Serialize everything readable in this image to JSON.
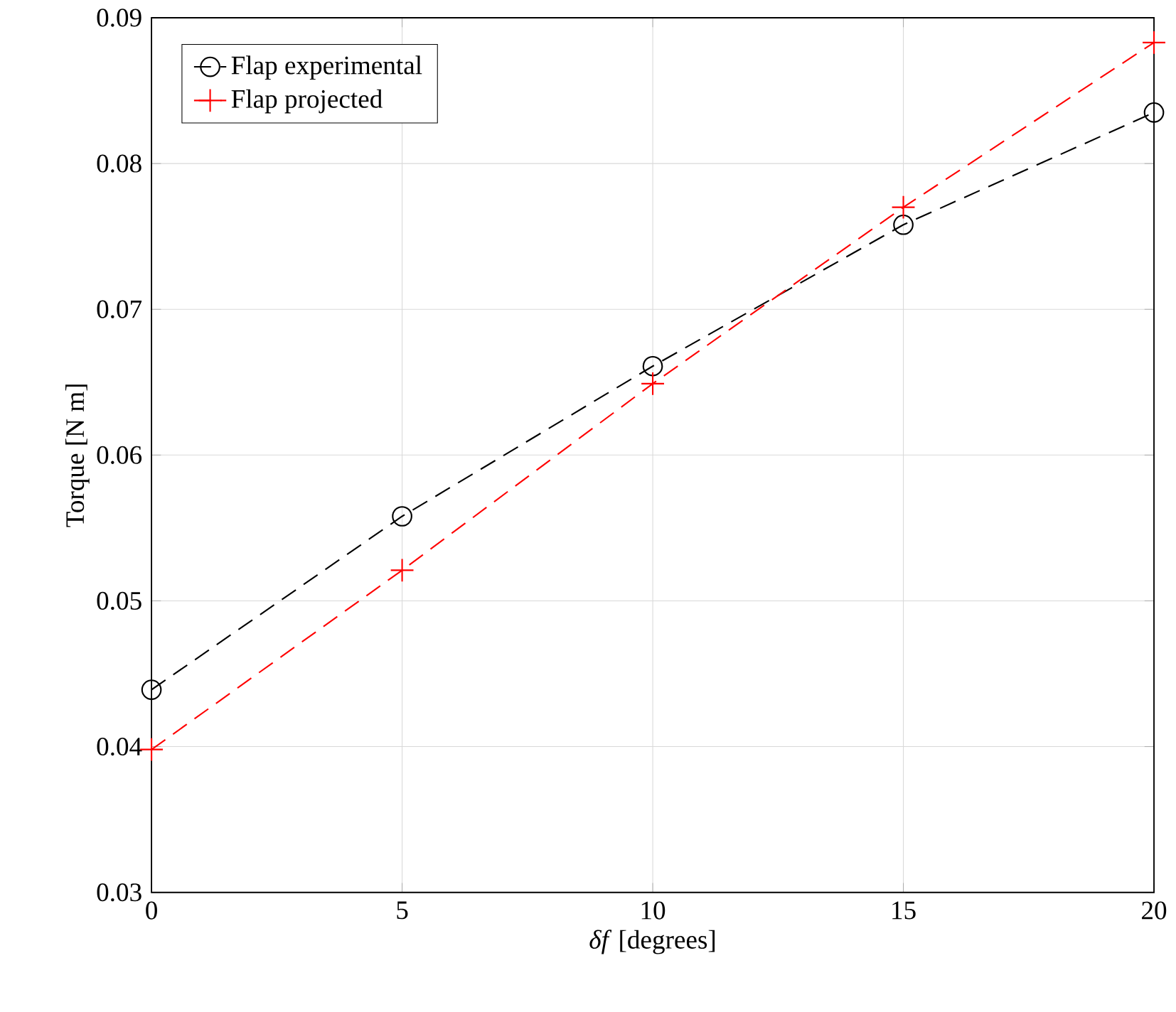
{
  "chart_data": {
    "type": "line",
    "xlabel": "*δf* [degrees]",
    "ylabel": "Torque [N m]",
    "x": [
      0,
      5,
      10,
      15,
      20
    ],
    "series": [
      {
        "name": "Flap experimental",
        "color": "#000000",
        "values": [
          0.0439,
          0.0558,
          0.0661,
          0.0758,
          0.0835
        ],
        "marker": "circle",
        "line_style": "dashed"
      },
      {
        "name": "Flap projected",
        "color": "#ff0000",
        "values": [
          0.0398,
          0.0521,
          0.0649,
          0.077,
          0.0883
        ],
        "marker": "cross",
        "line_style": "dashed"
      }
    ],
    "xlim": [
      0,
      20
    ],
    "ylim": [
      0.03,
      0.09
    ],
    "xticks": [
      0,
      5,
      10,
      15,
      20
    ],
    "yticks": [
      0.03,
      0.04,
      0.05,
      0.06,
      0.07,
      0.08,
      0.09
    ],
    "grid": true,
    "legend": "top left"
  }
}
